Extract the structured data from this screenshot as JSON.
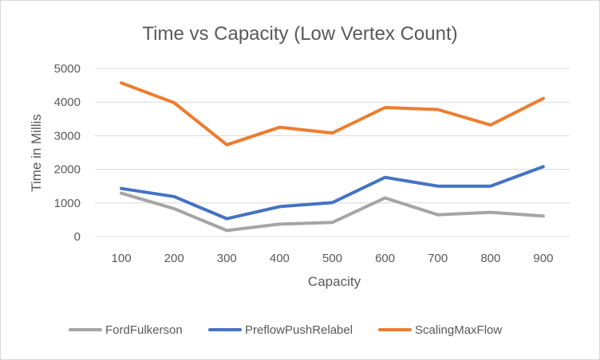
{
  "chart_data": {
    "type": "line",
    "title": "Time vs Capacity (Low Vertex Count)",
    "xlabel": "Capacity",
    "ylabel": "Time in Millis",
    "categories": [
      "100",
      "200",
      "300",
      "400",
      "500",
      "600",
      "700",
      "800",
      "900"
    ],
    "ylim": [
      0,
      5000
    ],
    "yticks": [
      "0",
      "1000",
      "2000",
      "3000",
      "4000",
      "5000"
    ],
    "grid": true,
    "legend_position": "bottom",
    "series": [
      {
        "name": "FordFulkerson",
        "color": "#a5a5a5",
        "values": [
          1290,
          830,
          180,
          370,
          420,
          1150,
          650,
          720,
          610
        ]
      },
      {
        "name": "PreflowPushRelabel",
        "color": "#4472c4",
        "values": [
          1430,
          1190,
          530,
          890,
          1010,
          1760,
          1500,
          1500,
          2080
        ]
      },
      {
        "name": "ScalingMaxFlow",
        "color": "#ed7d31",
        "values": [
          4570,
          3980,
          2730,
          3250,
          3080,
          3840,
          3780,
          3320,
          4110
        ]
      }
    ]
  }
}
